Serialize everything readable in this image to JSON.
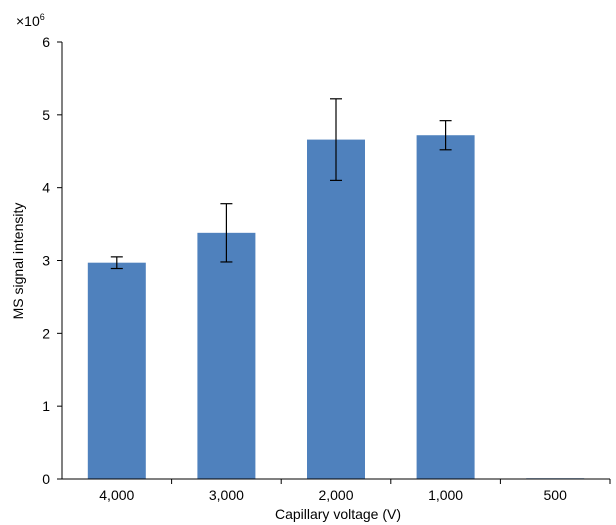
{
  "chart_data": {
    "type": "bar",
    "title": "",
    "xlabel": "Capillary voltage (V)",
    "ylabel": "MS signal intensity",
    "y_multiplier_label": "×10",
    "y_multiplier_exponent": "6",
    "categories": [
      "4,000",
      "3,000",
      "2,000",
      "1,000",
      "500"
    ],
    "series": [
      {
        "values": [
          2.97,
          3.38,
          4.66,
          4.72,
          0.01
        ],
        "error": [
          0.08,
          0.4,
          0.56,
          0.2,
          0.0
        ],
        "color": "#4f81bd"
      }
    ],
    "ylim": [
      0,
      6
    ],
    "yticks": [
      "0",
      "1",
      "2",
      "3",
      "4",
      "5",
      "6"
    ],
    "grid": false,
    "legend": "none"
  }
}
